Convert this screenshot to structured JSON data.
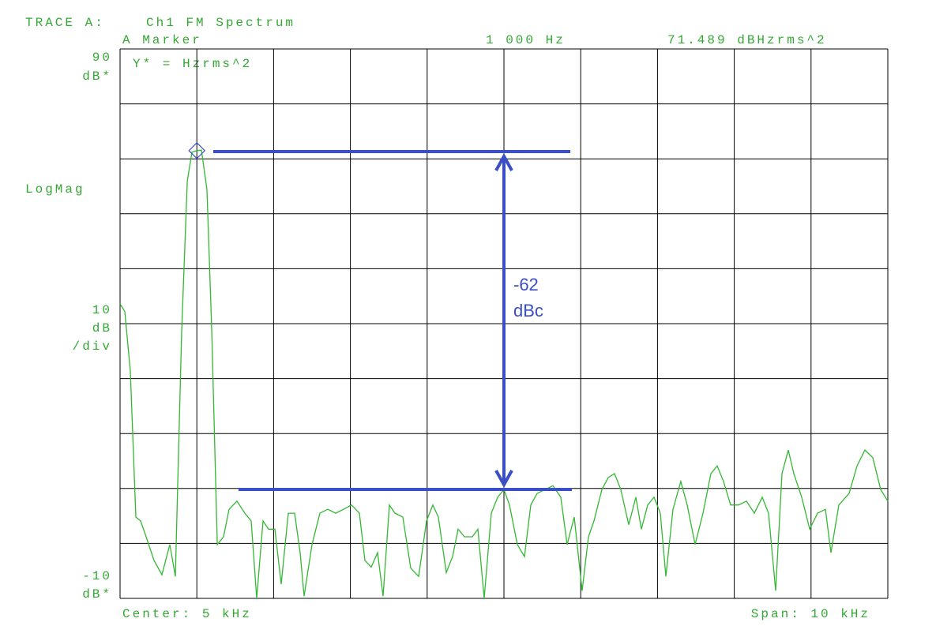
{
  "chart_data": {
    "type": "line",
    "title": "TRACE A:",
    "subtitle": "Ch1 FM Spectrum",
    "marker": {
      "title": "A Marker",
      "x": 1000,
      "x_label": "1 000 Hz",
      "y": 71.489,
      "y_label": "71.489 dBHzrms^2"
    },
    "y_note": "Y* = Hzrms^2",
    "y_top_unit": "dB*",
    "y_mode": "LogMag",
    "scale": {
      "value": 10,
      "unit": "dB",
      "per": "/div"
    },
    "y_bottom_unit": "dB*",
    "center": "Center: 5 kHz",
    "span": "Span: 10 kHz",
    "annotation": [
      "-62",
      "dBc"
    ],
    "xlim": [
      0,
      10000
    ],
    "xticks": [
      {
        "value": 0,
        "label": null
      },
      {
        "value": 1000,
        "label": null
      },
      {
        "value": 2000,
        "label": null
      },
      {
        "value": 3000,
        "label": null
      },
      {
        "value": 4000,
        "label": null
      },
      {
        "value": 5000,
        "label": null
      },
      {
        "value": 6000,
        "label": null
      },
      {
        "value": 7000,
        "label": null
      },
      {
        "value": 8000,
        "label": null
      },
      {
        "value": 9000,
        "label": null
      },
      {
        "value": 10000,
        "label": null
      }
    ],
    "ylim": [
      -10,
      90
    ],
    "yticks": [
      -10,
      {
        "value": 0,
        "label": null
      },
      {
        "value": 10,
        "label": null
      },
      {
        "value": 20,
        "label": null
      },
      {
        "value": 30,
        "label": null
      },
      {
        "value": 40,
        "label": null
      },
      {
        "value": 50,
        "label": null
      },
      {
        "value": 60,
        "label": null
      },
      {
        "value": 70,
        "label": null
      },
      {
        "value": 80,
        "label": null
      },
      90
    ],
    "grid": true,
    "x": [
      0,
      62,
      134,
      206,
      267,
      339,
      442,
      545,
      648,
      720,
      802,
      875,
      936,
      1000,
      1060,
      1132,
      1194,
      1266,
      1348,
      1420,
      1523,
      1626,
      1708,
      1780,
      1862,
      1934,
      2016,
      2099,
      2191,
      2274,
      2346,
      2397,
      2500,
      2603,
      2706,
      2809,
      2911,
      3014,
      3117,
      3189,
      3272,
      3354,
      3426,
      3508,
      3580,
      3683,
      3786,
      3889,
      3992,
      4074,
      4146,
      4249,
      4331,
      4403,
      4486,
      4588,
      4660,
      4743,
      4835,
      4918,
      5000,
      5072,
      5175,
      5267,
      5350,
      5432,
      5535,
      5638,
      5741,
      5823,
      5916,
      6019,
      6101,
      6173,
      6276,
      6358,
      6440,
      6523,
      6626,
      6718,
      6790,
      6872,
      6955,
      7037,
      7109,
      7202,
      7304,
      7387,
      7490,
      7593,
      7695,
      7778,
      7860,
      7953,
      8056,
      8158,
      8261,
      8364,
      8447,
      8539,
      8621,
      8704,
      8776,
      8879,
      8982,
      9084,
      9187,
      9259,
      9362,
      9496,
      9599,
      9702,
      9805,
      9907,
      10000
    ],
    "series": [
      {
        "name": "Ch1 FM Spectrum",
        "color": "#33b833",
        "values": [
          43.6,
          42.2,
          31.4,
          4.8,
          4.1,
          1.2,
          -3.1,
          -5.7,
          -0.2,
          -6.0,
          38.6,
          65.9,
          71.2,
          71.5,
          71.6,
          64.4,
          38.6,
          -0.2,
          1.2,
          6.2,
          7.7,
          5.5,
          4.1,
          -10,
          4.1,
          2.6,
          2.6,
          -7.4,
          5.5,
          5.5,
          -1.7,
          -9.6,
          -0.2,
          5.5,
          6.2,
          5.5,
          6.2,
          7.0,
          5.5,
          -3.1,
          -4.3,
          -1.7,
          -9.6,
          7.0,
          5.5,
          4.8,
          -4.5,
          -6.0,
          4.1,
          7.0,
          4.8,
          -5.3,
          -2.4,
          2.6,
          1.2,
          1.2,
          2.6,
          -10,
          5.5,
          8.4,
          9.8,
          7.0,
          -0.2,
          -2.4,
          7.0,
          9.1,
          9.8,
          10.5,
          8.4,
          -0.2,
          4.8,
          -8.6,
          1.2,
          4.1,
          9.8,
          12.0,
          12.7,
          9.8,
          3.4,
          8.4,
          2.6,
          7.0,
          8.4,
          5.5,
          -6.0,
          6.2,
          11.3,
          7.0,
          -0.2,
          5.5,
          12.7,
          14.1,
          11.3,
          7.0,
          7.0,
          7.7,
          5.5,
          8.4,
          5.5,
          -8.6,
          12.7,
          17.0,
          12.7,
          8.4,
          2.6,
          5.5,
          6.2,
          -1.7,
          7.0,
          9.1,
          14.1,
          17.0,
          15.6,
          9.8,
          7.7
        ]
      }
    ]
  }
}
